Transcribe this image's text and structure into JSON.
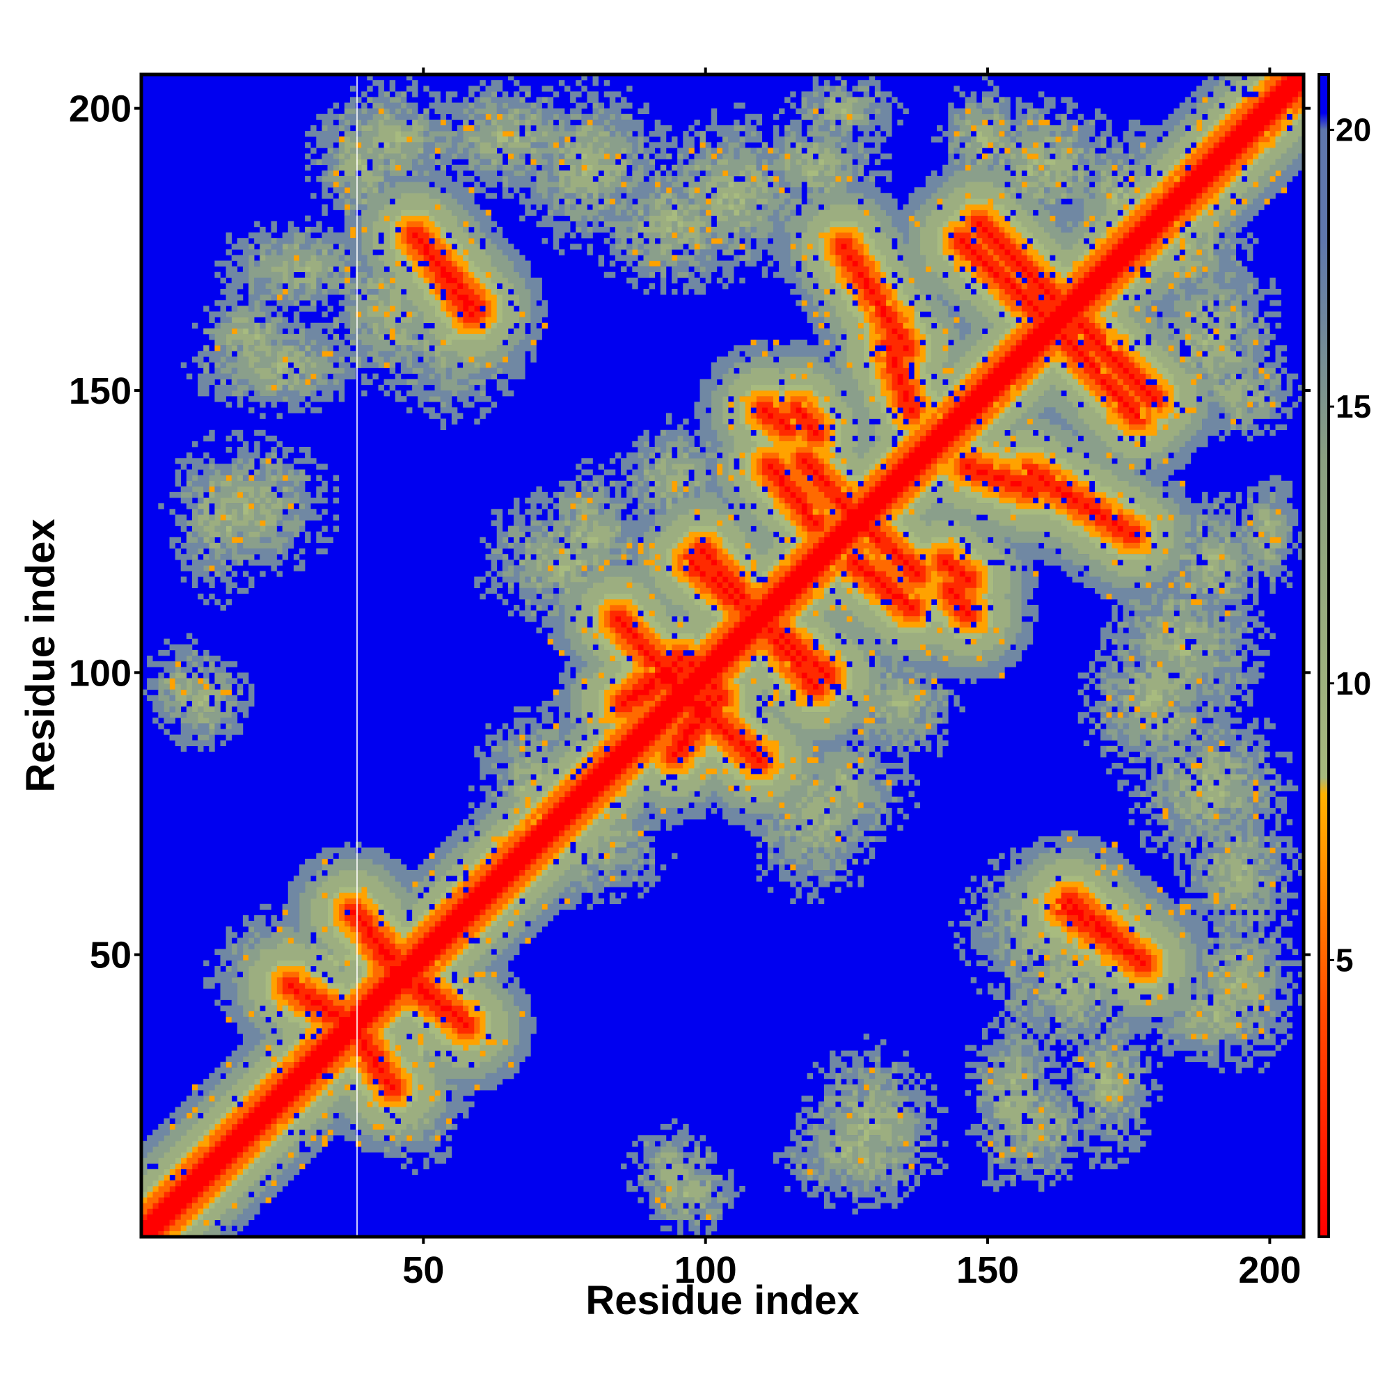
{
  "chart_data": {
    "type": "heatmap",
    "title": "",
    "xlabel": "Residue index",
    "ylabel": "Residue index",
    "n_residues": 206,
    "xlim": [
      0,
      206
    ],
    "ylim": [
      0,
      206
    ],
    "x_ticks": [
      50,
      100,
      150,
      200
    ],
    "y_ticks": [
      50,
      100,
      150,
      200
    ],
    "colorbar": {
      "ticks": [
        5,
        10,
        15,
        20
      ],
      "range": [
        0,
        21
      ],
      "colors": [
        {
          "value": 0,
          "color": "#ff0000"
        },
        {
          "value": 4,
          "color": "#ff4a00"
        },
        {
          "value": 7,
          "color": "#ff9900"
        },
        {
          "value": 8,
          "color": "#ffb300"
        },
        {
          "value": 8.3,
          "color": "#a7b97d"
        },
        {
          "value": 14,
          "color": "#8aa080"
        },
        {
          "value": 18,
          "color": "#5f78ad"
        },
        {
          "value": 20,
          "color": "#5f78ad"
        },
        {
          "value": 20.3,
          "color": "#0000f0"
        },
        {
          "value": 21,
          "color": "#0000f0"
        }
      ]
    },
    "background_color": "#0000f0",
    "contact_features": {
      "main_diagonal": {
        "from": 1,
        "to": 206
      },
      "antiparallel_segments": [
        {
          "a": [
            88,
            98
          ],
          "b": [
            96,
            102
          ]
        },
        {
          "a": [
            95,
            103
          ],
          "b": [
            86,
            96
          ]
        },
        {
          "a": [
            100,
            120
          ],
          "b": [
            122,
            98
          ]
        },
        {
          "a": [
            93,
            110
          ],
          "b": [
            100,
            85
          ]
        },
        {
          "a": [
            118,
            128
          ],
          "b": [
            138,
            127
          ]
        },
        {
          "a": [
            127,
            137
          ],
          "b": [
            120,
            112
          ]
        },
        {
          "a": [
            133,
            137
          ],
          "b": [
            158,
            147
          ]
        },
        {
          "a": [
            149,
            162
          ],
          "b": [
            180,
            167
          ]
        },
        {
          "a": [
            158,
            176
          ],
          "b": [
            136,
            125
          ]
        },
        {
          "a": [
            164,
            177
          ],
          "b": [
            160,
            146
          ]
        },
        {
          "a": [
            38,
            45
          ],
          "b": [
            58,
            50
          ]
        },
        {
          "a": [
            47,
            57
          ],
          "b": [
            46,
            39
          ]
        },
        {
          "a": [
            27,
            37
          ],
          "b": [
            45,
            38
          ]
        },
        {
          "a": [
            38,
            43
          ],
          "b": [
            38,
            30
          ]
        },
        {
          "a": [
            49,
            60
          ],
          "b": [
            178,
            165
          ]
        },
        {
          "a": [
            164,
            177
          ],
          "b": [
            59,
            50
          ]
        },
        {
          "a": [
            117,
            120
          ],
          "b": [
            147,
            143
          ]
        },
        {
          "a": [
            144,
            147
          ],
          "b": [
            115,
            111
          ]
        }
      ],
      "contact_blobs": [
        {
          "x": 45,
          "y": 165,
          "rx": 12,
          "ry": 14
        },
        {
          "x": 65,
          "y": 195,
          "rx": 14,
          "ry": 10
        },
        {
          "x": 40,
          "y": 190,
          "rx": 9,
          "ry": 12
        },
        {
          "x": 20,
          "y": 160,
          "rx": 10,
          "ry": 8
        },
        {
          "x": 15,
          "y": 128,
          "rx": 9,
          "ry": 14
        },
        {
          "x": 8,
          "y": 98,
          "rx": 7,
          "ry": 8
        },
        {
          "x": 25,
          "y": 48,
          "rx": 12,
          "ry": 10
        },
        {
          "x": 50,
          "y": 35,
          "rx": 9,
          "ry": 10
        },
        {
          "x": 70,
          "y": 80,
          "rx": 10,
          "ry": 14
        },
        {
          "x": 80,
          "y": 125,
          "rx": 10,
          "ry": 12
        },
        {
          "x": 95,
          "y": 180,
          "rx": 14,
          "ry": 12
        },
        {
          "x": 120,
          "y": 190,
          "rx": 12,
          "ry": 10
        },
        {
          "x": 110,
          "y": 140,
          "rx": 10,
          "ry": 12
        },
        {
          "x": 120,
          "y": 75,
          "rx": 12,
          "ry": 14
        },
        {
          "x": 135,
          "y": 95,
          "rx": 10,
          "ry": 10
        },
        {
          "x": 130,
          "y": 20,
          "rx": 12,
          "ry": 14
        },
        {
          "x": 95,
          "y": 12,
          "rx": 8,
          "ry": 8
        },
        {
          "x": 155,
          "y": 25,
          "rx": 8,
          "ry": 16
        },
        {
          "x": 172,
          "y": 28,
          "rx": 8,
          "ry": 14
        },
        {
          "x": 160,
          "y": 55,
          "rx": 14,
          "ry": 14
        },
        {
          "x": 195,
          "y": 45,
          "rx": 10,
          "ry": 14
        },
        {
          "x": 190,
          "y": 80,
          "rx": 14,
          "ry": 14
        },
        {
          "x": 185,
          "y": 105,
          "rx": 14,
          "ry": 16
        },
        {
          "x": 190,
          "y": 160,
          "rx": 12,
          "ry": 16
        },
        {
          "x": 175,
          "y": 185,
          "rx": 12,
          "ry": 12
        },
        {
          "x": 150,
          "y": 195,
          "rx": 8,
          "ry": 10
        },
        {
          "x": 200,
          "y": 125,
          "rx": 6,
          "ry": 10
        }
      ]
    }
  }
}
